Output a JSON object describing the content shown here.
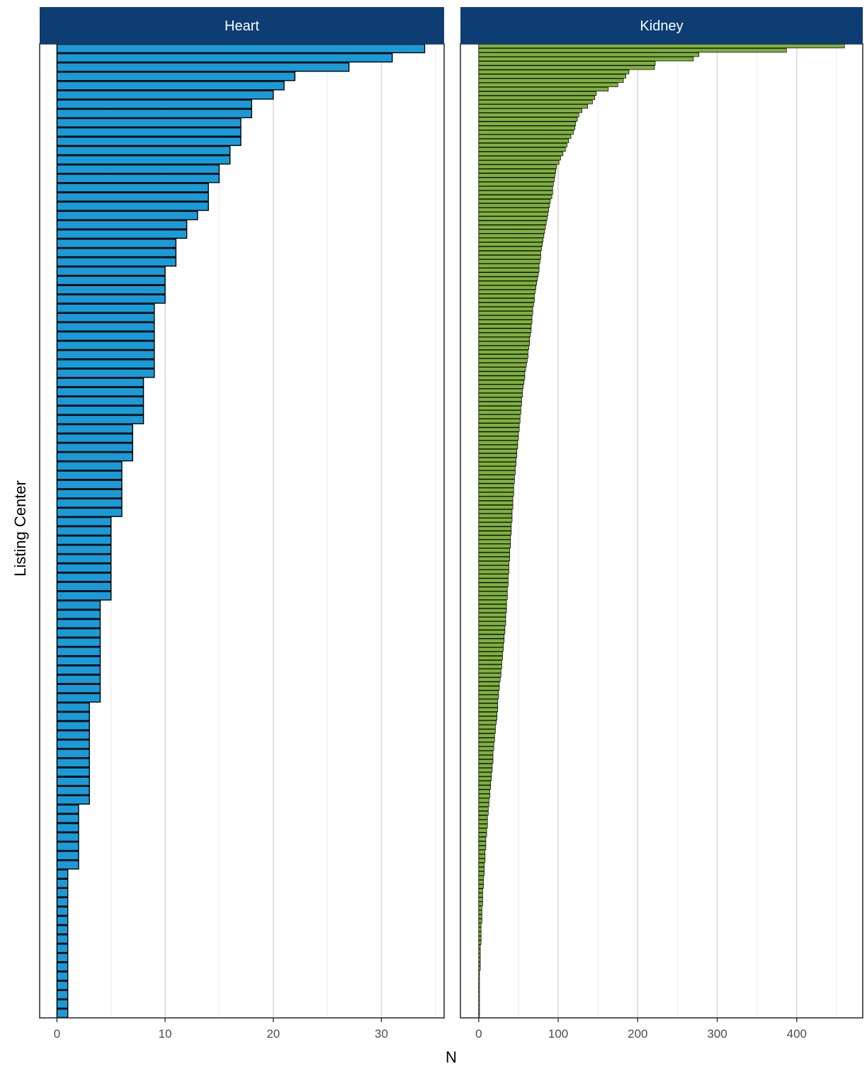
{
  "chart_data": {
    "type": "bar",
    "orientation": "horizontal",
    "faceted": true,
    "xlabel": "N",
    "ylabel": "Listing Center",
    "panels": [
      {
        "title": "Heart",
        "color": "#1a9bd7",
        "xlim": [
          -1.6,
          35.8
        ],
        "xticks": [
          0,
          10,
          20,
          30
        ],
        "tick_labels": [
          "0",
          "10",
          "20",
          "30"
        ],
        "values": [
          34,
          31,
          27,
          22,
          21,
          20,
          18,
          18,
          17,
          17,
          17,
          16,
          16,
          15,
          15,
          14,
          14,
          14,
          13,
          12,
          12,
          11,
          11,
          11,
          10,
          10,
          10,
          10,
          9,
          9,
          9,
          9,
          9,
          9,
          9,
          9,
          8,
          8,
          8,
          8,
          8,
          7,
          7,
          7,
          7,
          6,
          6,
          6,
          6,
          6,
          6,
          5,
          5,
          5,
          5,
          5,
          5,
          5,
          5,
          5,
          4,
          4,
          4,
          4,
          4,
          4,
          4,
          4,
          4,
          4,
          4,
          3,
          3,
          3,
          3,
          3,
          3,
          3,
          3,
          3,
          3,
          3,
          2,
          2,
          2,
          2,
          2,
          2,
          2,
          1,
          1,
          1,
          1,
          1,
          1,
          1,
          1,
          1,
          1,
          1,
          1,
          1,
          1,
          1,
          1
        ]
      },
      {
        "title": "Kidney",
        "color": "#7fb03f",
        "xlim": [
          -23,
          483
        ],
        "xticks": [
          0,
          100,
          200,
          300,
          400
        ],
        "tick_labels": [
          "0",
          "100",
          "200",
          "300",
          "400"
        ],
        "values": [
          460,
          387,
          277,
          270,
          222,
          221,
          189,
          185,
          182,
          175,
          163,
          148,
          146,
          143,
          137,
          130,
          126,
          124,
          122,
          121,
          119,
          116,
          113,
          111,
          109,
          106,
          103,
          101,
          98,
          97,
          96,
          95,
          94,
          93,
          93,
          92,
          90,
          89,
          88,
          87,
          86,
          85,
          84,
          83,
          82,
          81,
          80,
          79,
          78,
          78,
          77,
          76,
          76,
          75,
          74,
          73,
          72,
          71,
          70,
          70,
          69,
          68,
          68,
          67,
          67,
          66,
          66,
          65,
          64,
          64,
          63,
          62,
          62,
          61,
          60,
          59,
          58,
          58,
          57,
          56,
          55,
          55,
          54,
          54,
          53,
          53,
          52,
          52,
          51,
          51,
          50,
          50,
          49,
          49,
          48,
          48,
          47,
          47,
          46,
          46,
          45,
          45,
          44,
          44,
          44,
          43,
          43,
          43,
          42,
          42,
          42,
          41,
          41,
          41,
          40,
          40,
          40,
          39,
          39,
          39,
          38,
          38,
          38,
          37,
          37,
          37,
          36,
          36,
          36,
          35,
          35,
          35,
          34,
          34,
          34,
          33,
          33,
          32,
          32,
          31,
          31,
          30,
          30,
          29,
          29,
          28,
          28,
          27,
          26,
          26,
          25,
          25,
          24,
          24,
          24,
          23,
          23,
          22,
          21,
          21,
          20,
          20,
          19,
          19,
          18,
          18,
          18,
          17,
          17,
          16,
          16,
          15,
          15,
          14,
          14,
          13,
          13,
          12,
          12,
          11,
          11,
          11,
          10,
          10,
          9,
          9,
          9,
          8,
          8,
          8,
          7,
          7,
          7,
          6,
          6,
          6,
          5,
          5,
          5,
          5,
          4,
          4,
          4,
          4,
          3,
          3,
          3,
          3,
          3,
          2,
          2,
          2,
          2,
          2,
          2,
          1,
          1,
          1,
          1,
          1,
          1,
          1,
          1,
          1,
          1,
          1
        ]
      }
    ],
    "grid": true,
    "legend": "none"
  }
}
